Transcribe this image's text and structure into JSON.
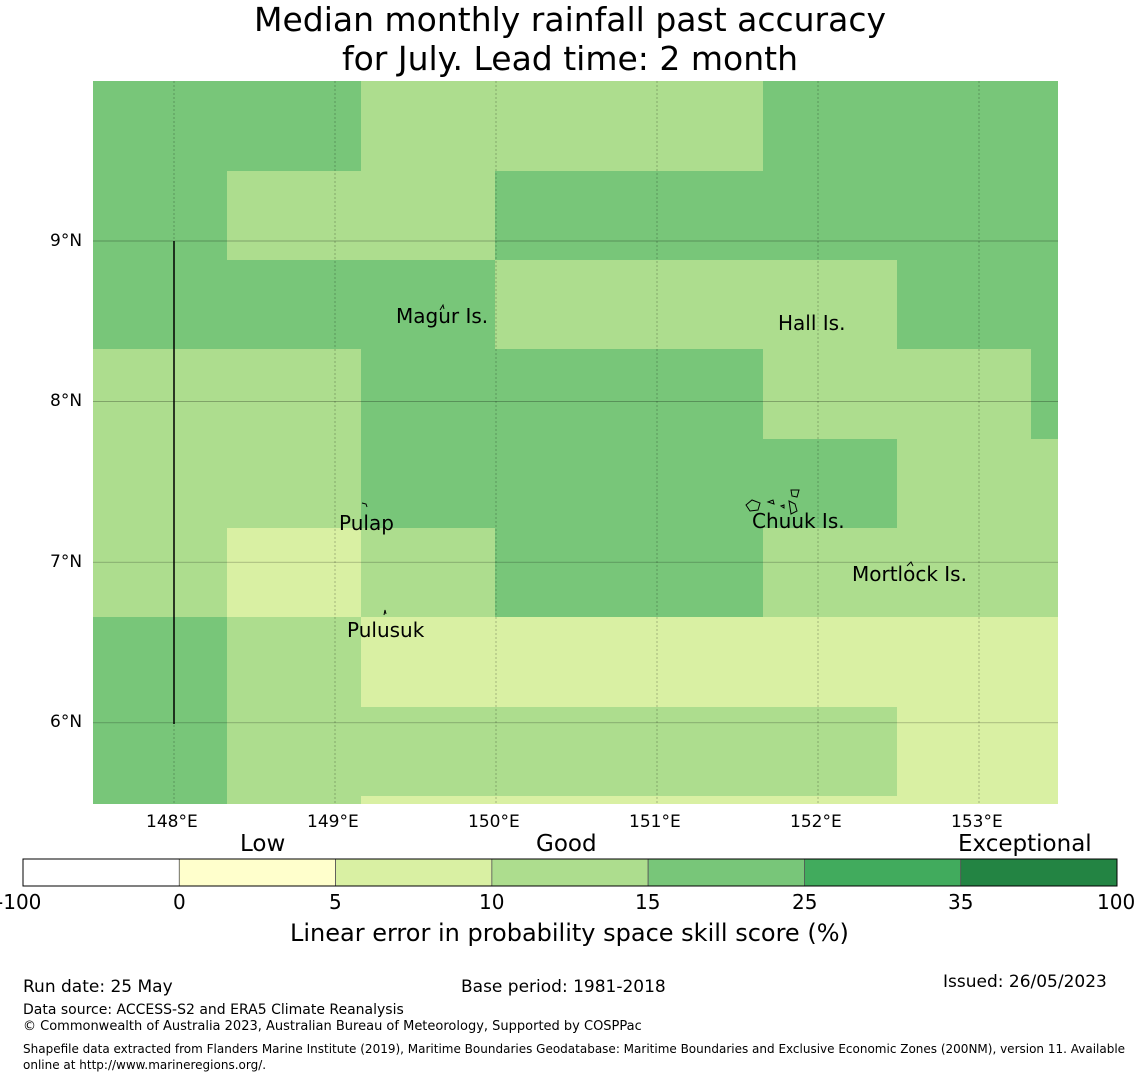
{
  "title": {
    "line1": "Median monthly rainfall past accuracy",
    "line2": "for July. Lead time: 2 month"
  },
  "map": {
    "lon_range": [
      147.5,
      153.5
    ],
    "lat_range": [
      5.5,
      10.0
    ],
    "x_ticks": [
      "148°E",
      "149°E",
      "150°E",
      "151°E",
      "152°E",
      "153°E"
    ],
    "y_ticks": [
      "9°N",
      "8°N",
      "7°N",
      "6°N"
    ],
    "places": [
      "Magur Is.",
      "Hall Is.",
      "Pulap",
      "Chuuk Is.",
      "Mortlock Is.",
      "Pulusuk"
    ],
    "grid": true
  },
  "legend": {
    "categories": [
      "Low",
      "Good",
      "Exceptional"
    ],
    "ticks": [
      "-100",
      "0",
      "5",
      "10",
      "15",
      "25",
      "35",
      "100"
    ],
    "colors": [
      "#ffffff",
      "#ffffcc",
      "#d9f0a3",
      "#addd8e",
      "#78c679",
      "#41ab5d",
      "#238443"
    ],
    "title": "Linear error in probability space skill score (%)"
  },
  "footer": {
    "run_date": "Run date: 25 May",
    "base_period": "Base period: 1981-2018",
    "issued": "Issued: 26/05/2023",
    "data_source": "Data source: ACCESS-S2 and ERA5 Climate Reanalysis",
    "copyright": "© Commonwealth of Australia 2023, Australian Bureau of Meteorology, Supported by COSPPac",
    "shapefile": "Shapefile data extracted from Flanders Marine Institute (2019), Maritime Boundaries Geodatabase: Maritime Boundaries and Exclusive Economic Zones (200NM), version 11. Available online at http://www.marineregions.org/."
  }
}
